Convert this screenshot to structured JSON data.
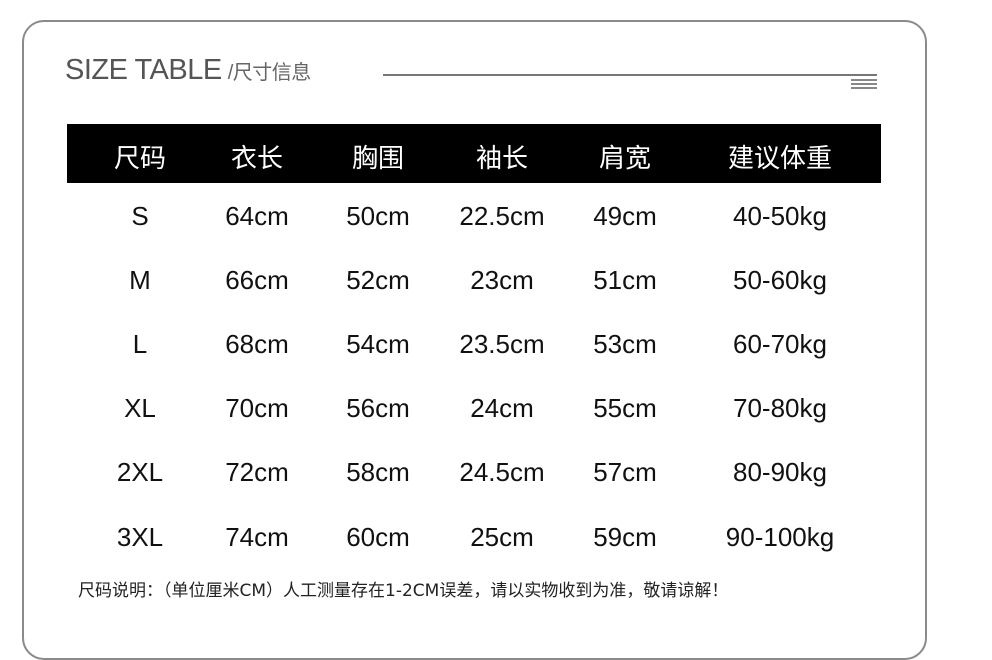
{
  "title": {
    "main": "SIZE TABLE",
    "sub": "/尺寸信息",
    "menu_icon": "menu-lines-icon"
  },
  "table": {
    "headers": [
      "尺码",
      "衣长",
      "胸围",
      "袖长",
      "肩宽",
      "建议体重"
    ],
    "rows": [
      [
        "S",
        "64cm",
        "50cm",
        "22.5cm",
        "49cm",
        "40-50kg"
      ],
      [
        "M",
        "66cm",
        "52cm",
        "23cm",
        "51cm",
        "50-60kg"
      ],
      [
        "L",
        "68cm",
        "54cm",
        "23.5cm",
        "53cm",
        "60-70kg"
      ],
      [
        "XL",
        "70cm",
        "56cm",
        "24cm",
        "55cm",
        "70-80kg"
      ],
      [
        "2XL",
        "72cm",
        "58cm",
        "24.5cm",
        "57cm",
        "80-90kg"
      ],
      [
        "3XL",
        "74cm",
        "60cm",
        "25cm",
        "59cm",
        "90-100kg"
      ]
    ]
  },
  "note": "尺码说明：（单位厘米CM）人工测量存在1-2CM误差，请以实物收到为准，敬请谅解！",
  "colors": {
    "header_bg": "#000000",
    "header_text": "#ffffff",
    "border": "#8a8a8a"
  }
}
